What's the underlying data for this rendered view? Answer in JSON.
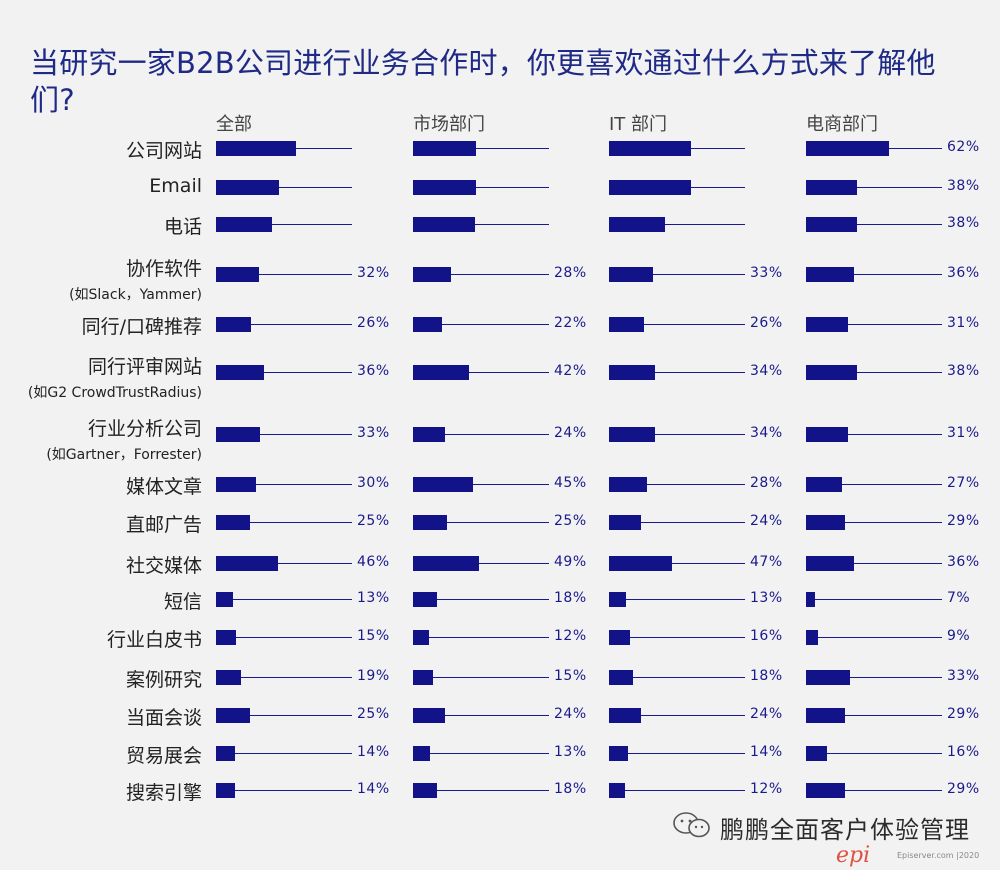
{
  "title": "当研究一家B2B公司进行业务合作时，你更喜欢通过什么方式来了解他们?",
  "watermark": "鹏鹏全面客户体验管理",
  "logo_text": "epi",
  "footer": "Episerver.com  |2020",
  "colors": {
    "bar": "#121289",
    "title": "#1f2a86",
    "logo": "#e0533f"
  },
  "chart_data": {
    "type": "bar",
    "orientation": "horizontal",
    "panels": [
      "全部",
      "市场部门",
      "IT 部门",
      "电商部门"
    ],
    "categories": [
      {
        "label": "公司网站",
        "sub": ""
      },
      {
        "label": "Email",
        "sub": ""
      },
      {
        "label": "电话",
        "sub": ""
      },
      {
        "label": "协作软件",
        "sub": "(如Slack，Yammer)"
      },
      {
        "label": "同行/口碑推荐",
        "sub": ""
      },
      {
        "label": "同行评审网站",
        "sub": "(如G2 CrowdTrustRadius)"
      },
      {
        "label": "行业分析公司",
        "sub": "(如Gartner，Forrester)"
      },
      {
        "label": "媒体文章",
        "sub": ""
      },
      {
        "label": "直邮广告",
        "sub": ""
      },
      {
        "label": "社交媒体",
        "sub": ""
      },
      {
        "label": "短信",
        "sub": ""
      },
      {
        "label": "行业白皮书",
        "sub": ""
      },
      {
        "label": "案例研究",
        "sub": ""
      },
      {
        "label": "当面会谈",
        "sub": ""
      },
      {
        "label": "贸易展会",
        "sub": ""
      },
      {
        "label": "搜索引擎",
        "sub": ""
      }
    ],
    "series": [
      {
        "name": "全部",
        "values": [
          60,
          47,
          42,
          32,
          26,
          36,
          33,
          30,
          25,
          46,
          13,
          15,
          19,
          25,
          14,
          14
        ],
        "labels_shown": [
          false,
          false,
          false,
          true,
          true,
          true,
          true,
          true,
          true,
          true,
          true,
          true,
          true,
          true,
          true,
          true
        ]
      },
      {
        "name": "市场部门",
        "values": [
          47,
          47,
          46,
          28,
          22,
          42,
          24,
          45,
          25,
          49,
          18,
          12,
          15,
          24,
          13,
          18
        ],
        "labels_shown": [
          false,
          false,
          false,
          true,
          true,
          true,
          true,
          true,
          true,
          true,
          true,
          true,
          true,
          true,
          true,
          true
        ]
      },
      {
        "name": "IT 部门",
        "values": [
          61,
          61,
          42,
          33,
          26,
          34,
          34,
          28,
          24,
          47,
          13,
          16,
          18,
          24,
          14,
          12
        ],
        "labels_shown": [
          false,
          false,
          false,
          true,
          true,
          true,
          true,
          true,
          true,
          true,
          true,
          true,
          true,
          true,
          true,
          true
        ]
      },
      {
        "name": "电商部门",
        "values": [
          62,
          38,
          38,
          36,
          31,
          38,
          31,
          27,
          29,
          36,
          7,
          9,
          33,
          29,
          16,
          29
        ],
        "labels_shown": [
          true,
          true,
          true,
          true,
          true,
          true,
          true,
          true,
          true,
          true,
          true,
          true,
          true,
          true,
          true,
          true
        ]
      }
    ],
    "xlim": [
      0,
      100
    ],
    "value_suffix": "%"
  }
}
